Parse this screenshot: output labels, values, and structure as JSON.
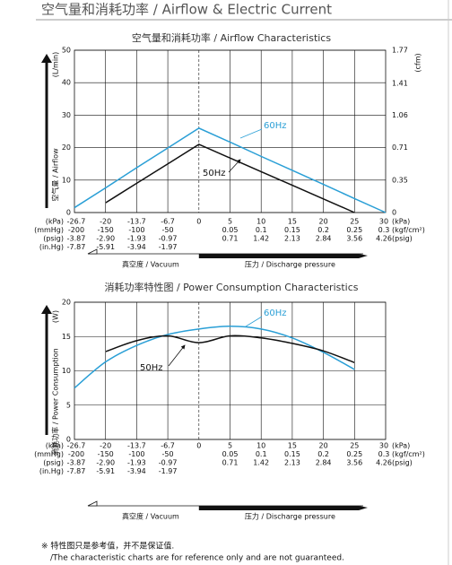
{
  "header": {
    "title": "空气量和消耗功率 / Airflow & Electric Current"
  },
  "chart_data": [
    {
      "type": "line",
      "title": "空气量和消耗功率 / Airflow Characteristics",
      "y_unit": "(L/min)",
      "y_label": "空气量 / Airflow",
      "y2_unit": "(cfm)",
      "categories": [
        "-26.7",
        "-20",
        "-13.7",
        "-6.7",
        "0",
        "5",
        "10",
        "15",
        "20",
        "25",
        "30"
      ],
      "x_rows": [
        {
          "left": "(kPa)",
          "right": "(kPa)"
        },
        {
          "left": "(mmHg)",
          "right": "(kgf/cm²)",
          "labels": [
            "-200",
            "-150",
            "-100",
            "-50",
            null,
            "0.05",
            "0.1",
            "0.15",
            "0.2",
            "0.25",
            "0.3"
          ]
        },
        {
          "left": "(psig)",
          "right": "(psig)",
          "labels": [
            "-3.87",
            "-2.90",
            "-1.93",
            "-0.97",
            null,
            "0.71",
            "1.42",
            "2.13",
            "2.84",
            "3.56",
            "4.26"
          ]
        },
        {
          "left": "(in.Hg)",
          "labels": [
            "-7.87",
            "-5.91",
            "-3.94",
            "-1.97",
            null,
            null,
            null,
            null,
            null,
            null,
            null
          ]
        }
      ],
      "pressure_bar": {
        "left": "真空度 / Vacuum",
        "right": "压力 / Discharge pressure"
      },
      "series": [
        {
          "name": "60Hz",
          "color": "#2a9fd6",
          "values": [
            1.5,
            7.6,
            13.8,
            19.9,
            26,
            21.7,
            17.3,
            13,
            8.7,
            4.3,
            0
          ]
        },
        {
          "name": "50Hz",
          "color": "#111111",
          "values": [
            null,
            3,
            9,
            15,
            21,
            16.8,
            12.6,
            8.4,
            4.2,
            0,
            null
          ]
        }
      ],
      "ylim": [
        0,
        50
      ],
      "yticks": [
        0,
        10,
        20,
        30,
        40,
        50
      ],
      "y2lim": [
        0,
        1.77
      ],
      "y2ticks": [
        0,
        0.35,
        0.71,
        1.06,
        1.41,
        1.77
      ],
      "grid": true,
      "smooth": false
    },
    {
      "type": "line",
      "title": "消耗功率特性图 / Power Consumption Characteristics",
      "y_unit": "(W)",
      "y_label": "消耗功率 / Power Consumption",
      "categories": [
        "-26.7",
        "-20",
        "-13.7",
        "-6.7",
        "0",
        "5",
        "10",
        "15",
        "20",
        "25",
        "30"
      ],
      "x_rows": [
        {
          "left": "(kPa)",
          "right": "(kPa)"
        },
        {
          "left": "(mmHg)",
          "right": "(kgf/cm²)",
          "labels": [
            "-200",
            "-150",
            "-100",
            "-50",
            null,
            "0.05",
            "0.1",
            "0.15",
            "0.2",
            "0.25",
            "0.3"
          ]
        },
        {
          "left": "(psig)",
          "right": "(psig)",
          "labels": [
            "-3.87",
            "-2.90",
            "-1.93",
            "-0.97",
            null,
            "0.71",
            "1.42",
            "2.13",
            "2.84",
            "3.56",
            "4.26"
          ]
        },
        {
          "left": "(in.Hg)",
          "labels": [
            "-7.87",
            "-5.91",
            "-3.94",
            "-1.97",
            null,
            null,
            null,
            null,
            null,
            null,
            null
          ]
        }
      ],
      "pressure_bar": {
        "left": "真空度 / Vacuum",
        "right": "压力 / Discharge pressure"
      },
      "series": [
        {
          "name": "60Hz",
          "color": "#2a9fd6",
          "values": [
            7.5,
            11.3,
            13.7,
            15.3,
            16.1,
            16.5,
            16.1,
            14.8,
            12.7,
            10.2,
            null
          ]
        },
        {
          "name": "50Hz",
          "color": "#111111",
          "values": [
            null,
            12.8,
            14.4,
            15.1,
            14.1,
            15.1,
            14.8,
            14.0,
            12.9,
            11.2,
            null
          ]
        }
      ],
      "ylim": [
        0,
        20
      ],
      "yticks": [
        0,
        5,
        10,
        15,
        20
      ],
      "grid": true,
      "smooth": true
    }
  ],
  "footer": {
    "note": "※ 特性图只是参考值，并不是保证值.",
    "note_en": "/The characteristic charts are for reference only and are not guaranteed."
  }
}
